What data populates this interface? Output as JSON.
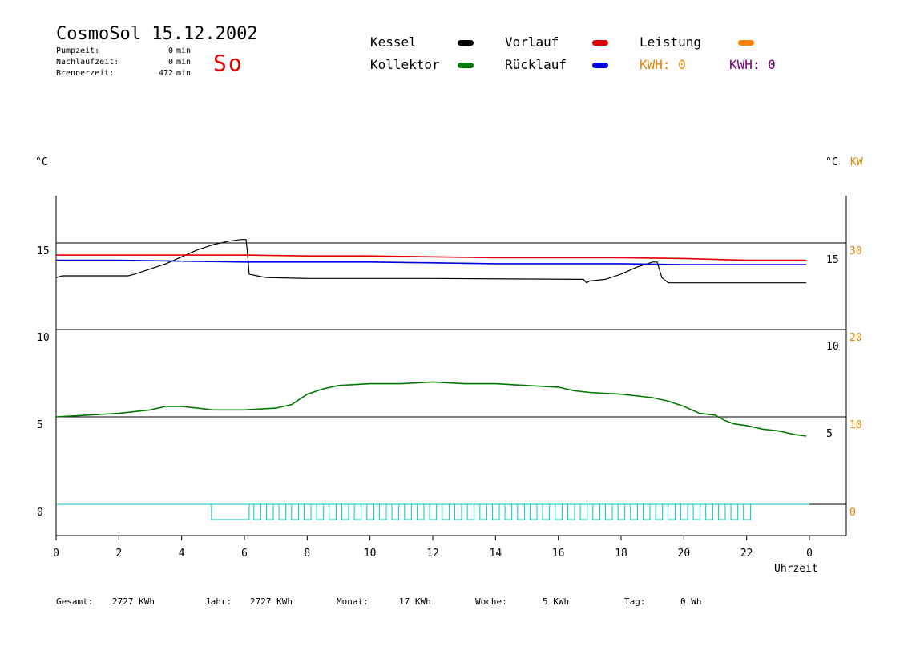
{
  "header": {
    "title": "CosmoSol 15.12.2002",
    "day": "So",
    "stats": [
      {
        "label": "Pumpzeit:",
        "value": "0",
        "unit": "min"
      },
      {
        "label": "Nachlaufzeit:",
        "value": "0",
        "unit": "min"
      },
      {
        "label": "Brennerzeit:",
        "value": "472",
        "unit": "min"
      }
    ]
  },
  "legend": {
    "kessel": {
      "label": "Kessel",
      "color": "#000000"
    },
    "vorlauf": {
      "label": "Vorlauf",
      "color": "#e00000"
    },
    "leistung": {
      "label": "Leistung",
      "color": "#ff8000"
    },
    "kollektor": {
      "label": "Kollektor",
      "color": "#007a00"
    },
    "ruecklauf": {
      "label": "Rücklauf",
      "color": "#0000e0"
    },
    "kwh1": {
      "label": "KWH: 0",
      "color": "#e08000"
    },
    "kwh2": {
      "label": "KWH: 0",
      "color": "#800080"
    }
  },
  "axes": {
    "left_unit": "°C",
    "right_unit_c": "°C",
    "right_unit_kw": "KW",
    "xlabel": "Uhrzeit"
  },
  "footer": [
    {
      "label": "Gesamt:",
      "value": "2727 KWh"
    },
    {
      "label": "Jahr:",
      "value": "2727 KWh"
    },
    {
      "label": "Monat:",
      "value": "17 KWh"
    },
    {
      "label": "Woche:",
      "value": "5 KWh"
    },
    {
      "label": "Tag:",
      "value": "0 Wh"
    }
  ],
  "chart_data": {
    "type": "line",
    "xlim": [
      0,
      24
    ],
    "x_ticks": [
      "0",
      "2",
      "4",
      "6",
      "8",
      "10",
      "12",
      "14",
      "16",
      "18",
      "20",
      "22",
      "0"
    ],
    "upper_panel": {
      "ylim": [
        10,
        15
      ],
      "left_ticks": [
        "15",
        "10"
      ],
      "right_ticks_c": [
        "15",
        "10"
      ],
      "right_ticks_kw": [
        "30",
        "20"
      ],
      "series": [
        {
          "name": "Kessel",
          "color": "#000000",
          "points": [
            [
              0,
              13.0
            ],
            [
              0.2,
              13.1
            ],
            [
              1,
              13.1
            ],
            [
              2.3,
              13.1
            ],
            [
              2.5,
              13.2
            ],
            [
              3,
              13.5
            ],
            [
              3.5,
              13.8
            ],
            [
              4,
              14.2
            ],
            [
              4.5,
              14.6
            ],
            [
              5,
              14.9
            ],
            [
              5.5,
              15.1
            ],
            [
              5.9,
              15.2
            ],
            [
              6.05,
              15.2
            ],
            [
              6.1,
              14.4
            ],
            [
              6.15,
              13.2
            ],
            [
              6.4,
              13.1
            ],
            [
              6.7,
              13.0
            ],
            [
              8,
              12.95
            ],
            [
              12,
              12.95
            ],
            [
              16.8,
              12.9
            ],
            [
              16.9,
              12.7
            ],
            [
              17,
              12.8
            ],
            [
              17.5,
              12.9
            ],
            [
              18,
              13.2
            ],
            [
              18.5,
              13.6
            ],
            [
              19,
              13.9
            ],
            [
              19.15,
              13.9
            ],
            [
              19.3,
              13.0
            ],
            [
              19.5,
              12.7
            ],
            [
              23.9,
              12.7
            ]
          ]
        },
        {
          "name": "Vorlauf",
          "color": "#e00000",
          "points": [
            [
              0,
              14.3
            ],
            [
              2,
              14.3
            ],
            [
              4,
              14.3
            ],
            [
              6,
              14.3
            ],
            [
              8,
              14.25
            ],
            [
              10,
              14.25
            ],
            [
              12,
              14.2
            ],
            [
              14,
              14.15
            ],
            [
              16,
              14.15
            ],
            [
              18,
              14.15
            ],
            [
              20,
              14.1
            ],
            [
              22,
              14.0
            ],
            [
              23.9,
              14.0
            ]
          ]
        },
        {
          "name": "Rücklauf",
          "color": "#0000e0",
          "points": [
            [
              0,
              14.0
            ],
            [
              2,
              14.0
            ],
            [
              4,
              13.95
            ],
            [
              6,
              13.9
            ],
            [
              8,
              13.9
            ],
            [
              10,
              13.9
            ],
            [
              12,
              13.85
            ],
            [
              14,
              13.8
            ],
            [
              16,
              13.8
            ],
            [
              18,
              13.8
            ],
            [
              20,
              13.75
            ],
            [
              22,
              13.75
            ],
            [
              23.9,
              13.75
            ]
          ]
        }
      ]
    },
    "lower_panel": {
      "ylim": [
        0,
        10
      ],
      "left_ticks": [
        "10",
        "5",
        "0"
      ],
      "right_ticks_c": [
        "10",
        "5"
      ],
      "right_ticks_kw": [
        "20",
        "10",
        "0"
      ],
      "series": [
        {
          "name": "Kollektor",
          "color": "#007a00",
          "points": [
            [
              0,
              5.0
            ],
            [
              1,
              5.1
            ],
            [
              2,
              5.2
            ],
            [
              3,
              5.4
            ],
            [
              3.5,
              5.6
            ],
            [
              4,
              5.6
            ],
            [
              4.5,
              5.5
            ],
            [
              5,
              5.4
            ],
            [
              6,
              5.4
            ],
            [
              7,
              5.5
            ],
            [
              7.5,
              5.7
            ],
            [
              8,
              6.3
            ],
            [
              8.5,
              6.6
            ],
            [
              9,
              6.8
            ],
            [
              10,
              6.9
            ],
            [
              11,
              6.9
            ],
            [
              12,
              7.0
            ],
            [
              13,
              6.9
            ],
            [
              14,
              6.9
            ],
            [
              15,
              6.8
            ],
            [
              16,
              6.7
            ],
            [
              16.5,
              6.5
            ],
            [
              17,
              6.4
            ],
            [
              18,
              6.3
            ],
            [
              19,
              6.1
            ],
            [
              19.5,
              5.9
            ],
            [
              20,
              5.6
            ],
            [
              20.5,
              5.2
            ],
            [
              21,
              5.1
            ],
            [
              21.3,
              4.8
            ],
            [
              21.6,
              4.6
            ],
            [
              22,
              4.5
            ],
            [
              22.5,
              4.3
            ],
            [
              23,
              4.2
            ],
            [
              23.5,
              4.0
            ],
            [
              23.9,
              3.9
            ]
          ]
        }
      ],
      "leistung_pulses": {
        "color": "#00c8c8",
        "level_start": 4.95,
        "level_end": 6.15,
        "pulse_start": 6.3,
        "pulse_end": 21.9,
        "pulse_period": 0.4
      }
    }
  }
}
